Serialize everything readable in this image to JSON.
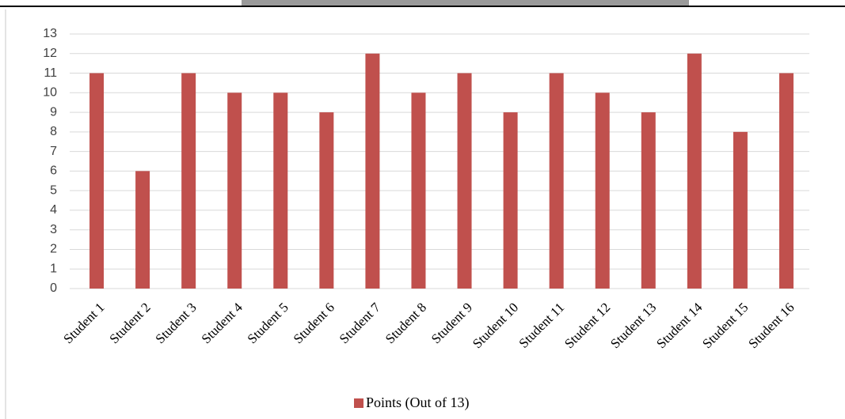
{
  "chart_data": {
    "type": "bar",
    "categories": [
      "Student 1",
      "Student 2",
      "Student 3",
      "Student 4",
      "Student 5",
      "Student 6",
      "Student 7",
      "Student 8",
      "Student 9",
      "Student 10",
      "Student 11",
      "Student 12",
      "Student 13",
      "Student 14",
      "Student 15",
      "Student 16"
    ],
    "series": [
      {
        "name": "Points (Out of 13)",
        "color": "#c0504d",
        "values": [
          11,
          6,
          11,
          10,
          10,
          9,
          12,
          10,
          11,
          9,
          11,
          10,
          9,
          12,
          8,
          11
        ]
      }
    ],
    "ylim": [
      0,
      13
    ],
    "yticks": [
      0,
      1,
      2,
      3,
      4,
      5,
      6,
      7,
      8,
      9,
      10,
      11,
      12,
      13
    ],
    "grid": true,
    "legend": "bottom"
  }
}
